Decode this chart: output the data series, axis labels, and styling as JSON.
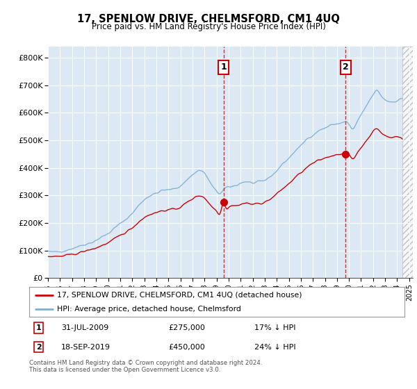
{
  "title": "17, SPENLOW DRIVE, CHELMSFORD, CM1 4UQ",
  "subtitle": "Price paid vs. HM Land Registry’s House Price Index (HPI)",
  "subtitle2": "Price paid vs. HM Land Registry's House Price Index (HPI)",
  "legend_line1": "17, SPENLOW DRIVE, CHELMSFORD, CM1 4UQ (detached house)",
  "legend_line2": "HPI: Average price, detached house, Chelmsford",
  "footer": "Contains HM Land Registry data © Crown copyright and database right 2024.\nThis data is licensed under the Open Government Licence v3.0.",
  "red_color": "#cc0000",
  "blue_color": "#7bafd4",
  "background_color": "#dce9f5",
  "plot_bg": "#ffffff",
  "yticks": [
    0,
    100000,
    200000,
    300000,
    400000,
    500000,
    600000,
    700000,
    800000
  ],
  "ytick_labels": [
    "£0",
    "£100K",
    "£200K",
    "£300K",
    "£400K",
    "£500K",
    "£600K",
    "£700K",
    "£800K"
  ],
  "ylim": [
    0,
    840000
  ],
  "xlim_start": 1995.0,
  "xlim_end": 2025.3,
  "hatch_start": 2024.42,
  "t1_x": 2009.58,
  "t1_y": 275000,
  "t1_label": "1",
  "t1_date": "31-JUL-2009",
  "t1_price": "£275,000",
  "t1_pct": "17% ↓ HPI",
  "t2_x": 2019.72,
  "t2_y": 450000,
  "t2_label": "2",
  "t2_date": "18-SEP-2019",
  "t2_price": "£450,000",
  "t2_pct": "24% ↓ HPI"
}
